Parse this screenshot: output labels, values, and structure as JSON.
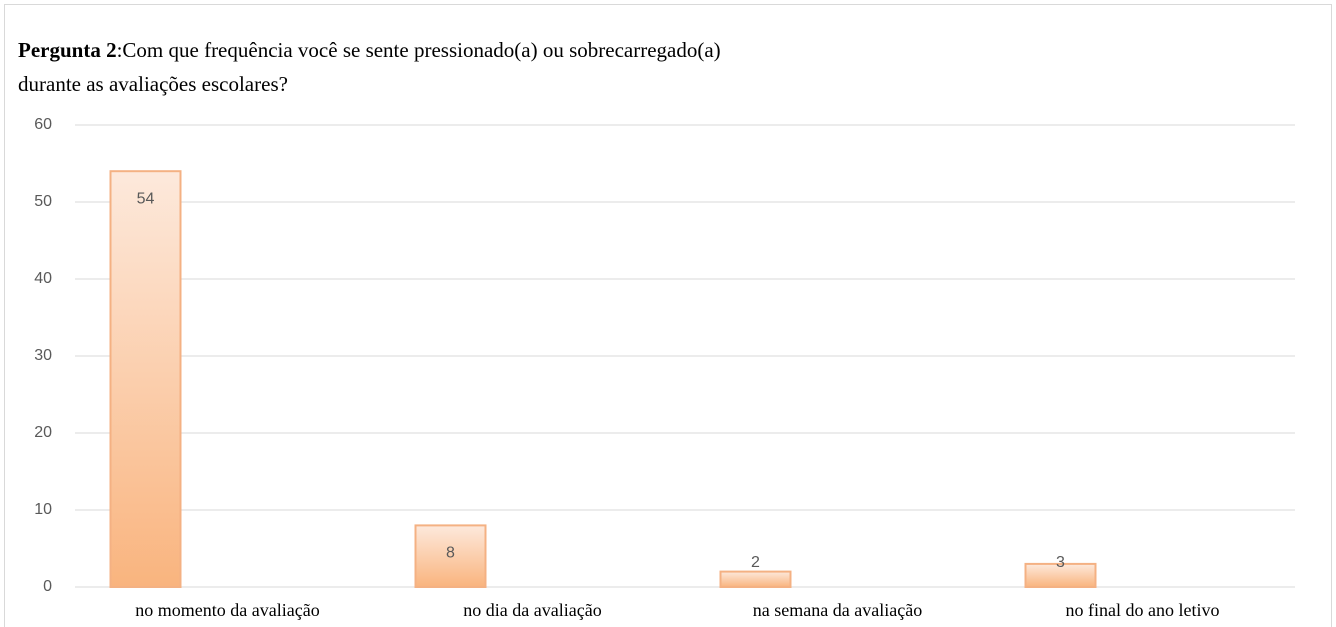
{
  "chart_data": {
    "type": "bar",
    "title": {
      "label": "Pergunta 2",
      "lines": [
        ":Com que frequência você se sente pressionado(a) ou sobrecarregado(a)",
        "durante as avaliações escolares?"
      ]
    },
    "categories": [
      "no momento da  avaliação",
      "no dia da  avaliação",
      "na semana da  avaliação",
      "no final do ano letivo"
    ],
    "values": [
      54,
      8,
      2,
      3
    ],
    "color": "#f4b183",
    "ylim": [
      0,
      60
    ],
    "yticks": [
      0,
      10,
      20,
      30,
      40,
      50,
      60
    ],
    "grid": true
  }
}
